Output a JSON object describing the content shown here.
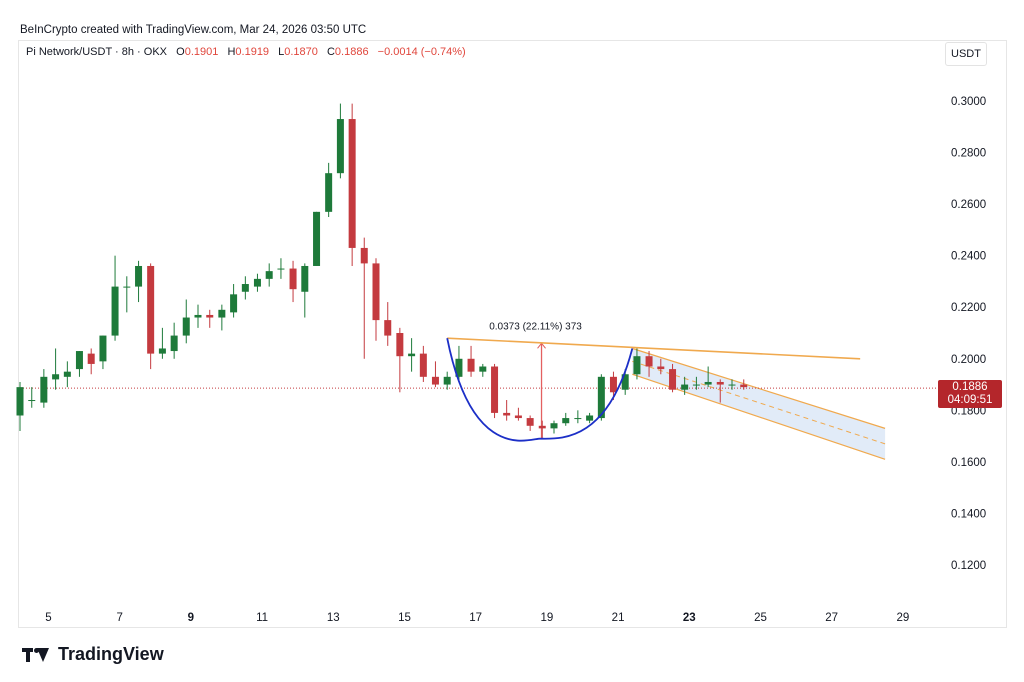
{
  "credit": "BeInCrypto created with TradingView.com, Mar 24, 2026 03:50 UTC",
  "legend": {
    "pair": "Pi Network/USDT · 8h · OKX",
    "o_label": "O",
    "o": "0.1901",
    "h_label": "H",
    "h": "0.1919",
    "l_label": "L",
    "l": "0.1870",
    "c_label": "C",
    "c": "0.1886",
    "change": "−0.0014 (−0.74%)"
  },
  "unit": "USDT",
  "brand": "TradingView",
  "price_tag": {
    "price": "0.1886",
    "countdown": "04:09:51"
  },
  "colors": {
    "up": "#1e7a3a",
    "down": "#c43a3f",
    "trend": "#f0a94e",
    "cup": "#1c2fc7",
    "channel": "#dce7f7",
    "measure": "#e35b5b"
  },
  "chart_data": {
    "type": "candlestick",
    "title": "",
    "y_ticks": [
      0.12,
      0.14,
      0.16,
      0.18,
      0.2,
      0.22,
      0.24,
      0.26,
      0.28,
      0.3
    ],
    "y_tick_labels": [
      "0.1200",
      "0.1400",
      "0.1600",
      "0.1800",
      "0.2000",
      "0.2200",
      "0.2400",
      "0.2600",
      "0.2800",
      "0.3000"
    ],
    "x_ticks": [
      {
        "label": "5",
        "day": 5,
        "bold": false
      },
      {
        "label": "7",
        "day": 7,
        "bold": false
      },
      {
        "label": "9",
        "day": 9,
        "bold": true
      },
      {
        "label": "11",
        "day": 11,
        "bold": false
      },
      {
        "label": "13",
        "day": 13,
        "bold": false
      },
      {
        "label": "15",
        "day": 15,
        "bold": false
      },
      {
        "label": "17",
        "day": 17,
        "bold": false
      },
      {
        "label": "19",
        "day": 19,
        "bold": false
      },
      {
        "label": "21",
        "day": 21,
        "bold": false
      },
      {
        "label": "23",
        "day": 23,
        "bold": true
      },
      {
        "label": "25",
        "day": 25,
        "bold": false
      },
      {
        "label": "27",
        "day": 27,
        "bold": false
      },
      {
        "label": "29",
        "day": 29,
        "bold": false
      }
    ],
    "candles": [
      {
        "d": 4.2,
        "o": 0.178,
        "h": 0.191,
        "l": 0.172,
        "c": 0.189
      },
      {
        "d": 4.53,
        "o": 0.184,
        "h": 0.189,
        "l": 0.181,
        "c": 0.184
      },
      {
        "d": 4.87,
        "o": 0.183,
        "h": 0.196,
        "l": 0.181,
        "c": 0.193
      },
      {
        "d": 5.2,
        "o": 0.192,
        "h": 0.204,
        "l": 0.188,
        "c": 0.194
      },
      {
        "d": 5.53,
        "o": 0.193,
        "h": 0.199,
        "l": 0.189,
        "c": 0.195
      },
      {
        "d": 5.87,
        "o": 0.196,
        "h": 0.203,
        "l": 0.193,
        "c": 0.203
      },
      {
        "d": 6.2,
        "o": 0.202,
        "h": 0.204,
        "l": 0.194,
        "c": 0.198
      },
      {
        "d": 6.53,
        "o": 0.199,
        "h": 0.209,
        "l": 0.196,
        "c": 0.209
      },
      {
        "d": 6.87,
        "o": 0.209,
        "h": 0.24,
        "l": 0.207,
        "c": 0.228
      },
      {
        "d": 7.2,
        "o": 0.228,
        "h": 0.232,
        "l": 0.218,
        "c": 0.228
      },
      {
        "d": 7.53,
        "o": 0.228,
        "h": 0.238,
        "l": 0.222,
        "c": 0.236
      },
      {
        "d": 7.87,
        "o": 0.236,
        "h": 0.237,
        "l": 0.196,
        "c": 0.202
      },
      {
        "d": 8.2,
        "o": 0.202,
        "h": 0.212,
        "l": 0.2,
        "c": 0.204
      },
      {
        "d": 8.53,
        "o": 0.203,
        "h": 0.214,
        "l": 0.2,
        "c": 0.209
      },
      {
        "d": 8.87,
        "o": 0.209,
        "h": 0.223,
        "l": 0.206,
        "c": 0.216
      },
      {
        "d": 9.2,
        "o": 0.216,
        "h": 0.221,
        "l": 0.212,
        "c": 0.217
      },
      {
        "d": 9.53,
        "o": 0.217,
        "h": 0.219,
        "l": 0.212,
        "c": 0.216
      },
      {
        "d": 9.87,
        "o": 0.216,
        "h": 0.221,
        "l": 0.211,
        "c": 0.219
      },
      {
        "d": 10.2,
        "o": 0.218,
        "h": 0.229,
        "l": 0.216,
        "c": 0.225
      },
      {
        "d": 10.53,
        "o": 0.226,
        "h": 0.232,
        "l": 0.223,
        "c": 0.229
      },
      {
        "d": 10.87,
        "o": 0.228,
        "h": 0.233,
        "l": 0.226,
        "c": 0.231
      },
      {
        "d": 11.2,
        "o": 0.231,
        "h": 0.237,
        "l": 0.228,
        "c": 0.234
      },
      {
        "d": 11.53,
        "o": 0.235,
        "h": 0.239,
        "l": 0.231,
        "c": 0.235
      },
      {
        "d": 11.87,
        "o": 0.235,
        "h": 0.238,
        "l": 0.222,
        "c": 0.227
      },
      {
        "d": 12.2,
        "o": 0.226,
        "h": 0.237,
        "l": 0.216,
        "c": 0.236
      },
      {
        "d": 12.53,
        "o": 0.236,
        "h": 0.257,
        "l": 0.236,
        "c": 0.257
      },
      {
        "d": 12.87,
        "o": 0.257,
        "h": 0.276,
        "l": 0.255,
        "c": 0.272
      },
      {
        "d": 13.2,
        "o": 0.272,
        "h": 0.299,
        "l": 0.27,
        "c": 0.293
      },
      {
        "d": 13.53,
        "o": 0.293,
        "h": 0.299,
        "l": 0.236,
        "c": 0.243
      },
      {
        "d": 13.87,
        "o": 0.243,
        "h": 0.247,
        "l": 0.2,
        "c": 0.237
      },
      {
        "d": 14.2,
        "o": 0.237,
        "h": 0.239,
        "l": 0.207,
        "c": 0.215
      },
      {
        "d": 14.53,
        "o": 0.215,
        "h": 0.222,
        "l": 0.205,
        "c": 0.209
      },
      {
        "d": 14.87,
        "o": 0.21,
        "h": 0.212,
        "l": 0.187,
        "c": 0.201
      },
      {
        "d": 15.2,
        "o": 0.201,
        "h": 0.208,
        "l": 0.195,
        "c": 0.202
      },
      {
        "d": 15.53,
        "o": 0.202,
        "h": 0.205,
        "l": 0.191,
        "c": 0.193
      },
      {
        "d": 15.87,
        "o": 0.193,
        "h": 0.199,
        "l": 0.189,
        "c": 0.19
      },
      {
        "d": 16.2,
        "o": 0.19,
        "h": 0.195,
        "l": 0.188,
        "c": 0.193
      },
      {
        "d": 16.53,
        "o": 0.193,
        "h": 0.205,
        "l": 0.191,
        "c": 0.2
      },
      {
        "d": 16.87,
        "o": 0.2,
        "h": 0.205,
        "l": 0.193,
        "c": 0.195
      },
      {
        "d": 17.2,
        "o": 0.195,
        "h": 0.198,
        "l": 0.193,
        "c": 0.197
      },
      {
        "d": 17.53,
        "o": 0.197,
        "h": 0.198,
        "l": 0.177,
        "c": 0.179
      },
      {
        "d": 17.87,
        "o": 0.179,
        "h": 0.184,
        "l": 0.176,
        "c": 0.178
      },
      {
        "d": 18.2,
        "o": 0.178,
        "h": 0.181,
        "l": 0.176,
        "c": 0.177
      },
      {
        "d": 18.53,
        "o": 0.177,
        "h": 0.178,
        "l": 0.172,
        "c": 0.174
      },
      {
        "d": 18.87,
        "o": 0.174,
        "h": 0.176,
        "l": 0.169,
        "c": 0.173
      },
      {
        "d": 19.2,
        "o": 0.173,
        "h": 0.176,
        "l": 0.171,
        "c": 0.175
      },
      {
        "d": 19.53,
        "o": 0.175,
        "h": 0.179,
        "l": 0.174,
        "c": 0.177
      },
      {
        "d": 19.87,
        "o": 0.177,
        "h": 0.18,
        "l": 0.175,
        "c": 0.177
      },
      {
        "d": 20.2,
        "o": 0.176,
        "h": 0.179,
        "l": 0.175,
        "c": 0.178
      },
      {
        "d": 20.53,
        "o": 0.177,
        "h": 0.194,
        "l": 0.176,
        "c": 0.193
      },
      {
        "d": 20.87,
        "o": 0.193,
        "h": 0.195,
        "l": 0.184,
        "c": 0.187
      },
      {
        "d": 21.2,
        "o": 0.188,
        "h": 0.196,
        "l": 0.186,
        "c": 0.194
      },
      {
        "d": 21.53,
        "o": 0.194,
        "h": 0.204,
        "l": 0.192,
        "c": 0.201
      },
      {
        "d": 21.87,
        "o": 0.201,
        "h": 0.203,
        "l": 0.193,
        "c": 0.197
      },
      {
        "d": 22.2,
        "o": 0.197,
        "h": 0.2,
        "l": 0.194,
        "c": 0.196
      },
      {
        "d": 22.53,
        "o": 0.196,
        "h": 0.198,
        "l": 0.187,
        "c": 0.188
      },
      {
        "d": 22.87,
        "o": 0.188,
        "h": 0.193,
        "l": 0.186,
        "c": 0.19
      },
      {
        "d": 23.2,
        "o": 0.19,
        "h": 0.193,
        "l": 0.188,
        "c": 0.19
      },
      {
        "d": 23.53,
        "o": 0.19,
        "h": 0.197,
        "l": 0.189,
        "c": 0.191
      },
      {
        "d": 23.87,
        "o": 0.191,
        "h": 0.192,
        "l": 0.183,
        "c": 0.19
      },
      {
        "d": 24.2,
        "o": 0.19,
        "h": 0.192,
        "l": 0.188,
        "c": 0.19
      },
      {
        "d": 24.53,
        "o": 0.19,
        "h": 0.192,
        "l": 0.188,
        "c": 0.189
      }
    ],
    "current_price": 0.1886,
    "overlays": {
      "resistance": {
        "from": {
          "d": 16.2,
          "p": 0.208
        },
        "to": {
          "d": 27.8,
          "p": 0.2
        }
      },
      "cup": {
        "start": {
          "d": 16.2,
          "p": 0.208
        },
        "bottom": {
          "d": 18.8,
          "p": 0.169
        },
        "end": {
          "d": 21.4,
          "p": 0.204
        }
      },
      "channel": {
        "upper": [
          {
            "d": 21.4,
            "p": 0.204
          },
          {
            "d": 28.5,
            "p": 0.173
          }
        ],
        "lower": [
          {
            "d": 21.4,
            "p": 0.194
          },
          {
            "d": 28.5,
            "p": 0.161
          }
        ]
      },
      "measure": {
        "d": 18.85,
        "from": 0.169,
        "to": 0.206,
        "label": "0.0373 (22.11%) 373"
      }
    }
  }
}
